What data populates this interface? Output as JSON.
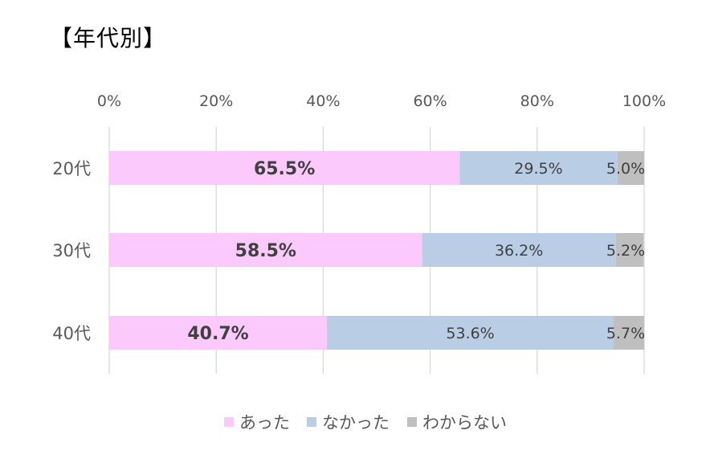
{
  "chart_data": {
    "type": "bar",
    "orientation": "horizontal",
    "stacked": "percent",
    "title": "【年代別】",
    "categories": [
      "20代",
      "30代",
      "40代"
    ],
    "series": [
      {
        "name": "あった",
        "values": [
          65.5,
          58.5,
          40.7
        ],
        "color": "#fcc9fc",
        "label_bold": true
      },
      {
        "name": "なかった",
        "values": [
          29.5,
          36.2,
          53.6
        ],
        "color": "#b9cde5",
        "label_bold": false
      },
      {
        "name": "わからない",
        "values": [
          5.0,
          5.2,
          5.7
        ],
        "color": "#bfbfbf",
        "label_bold": false
      }
    ],
    "xlim": [
      0,
      100
    ],
    "x_ticks": [
      "0%",
      "20%",
      "40%",
      "60%",
      "80%",
      "100%"
    ],
    "x_tick_values": [
      0,
      20,
      40,
      60,
      80,
      100
    ],
    "value_labels": [
      [
        "65.5%",
        "29.5%",
        "5.0%"
      ],
      [
        "58.5%",
        "36.2%",
        "5.2%"
      ],
      [
        "40.7%",
        "53.6%",
        "5.7%"
      ]
    ],
    "axis_position": "top",
    "grid": true,
    "legend_position": "bottom"
  }
}
